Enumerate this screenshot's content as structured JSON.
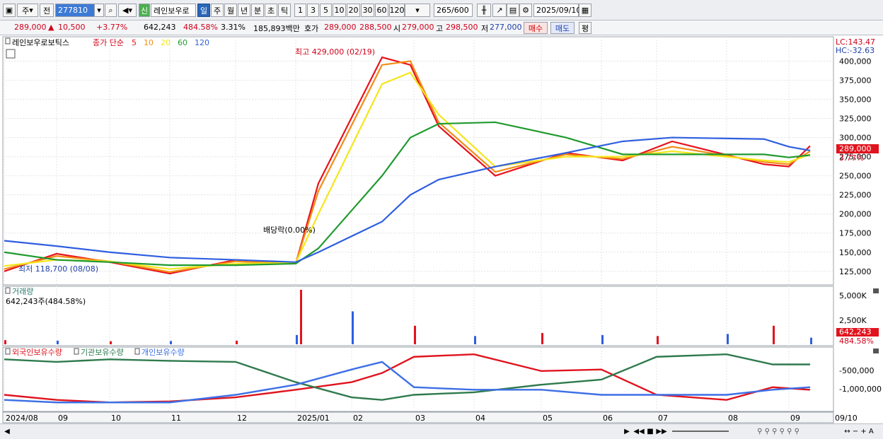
{
  "toolbar": {
    "period_label": "주",
    "all_label": "전",
    "code": "277810",
    "new_badge": "신",
    "stock_name": "레인보우로",
    "tabs": [
      "일",
      "주",
      "월",
      "년",
      "분",
      "초",
      "틱"
    ],
    "active_tab": 0,
    "intervals": [
      "1",
      "3",
      "5",
      "10",
      "20",
      "30",
      "60",
      "120"
    ],
    "count_value": "265",
    "count_max": "/600",
    "date": "2025/09/10"
  },
  "quote": {
    "price": "289,000",
    "change": "10,500",
    "change_pct": "+3.77%",
    "volume": "642,243",
    "volume_ratio": "484.58%",
    "turnover_pct": "3.31%",
    "amount": "185,893백만",
    "ask_label": "호가",
    "ask": "289,000",
    "bid": "288,500",
    "open_label": "시",
    "open": "279,000",
    "high_label": "고",
    "high": "298,500",
    "low_label": "저",
    "low": "277,000",
    "buy_button": "매수",
    "sell_button": "매도",
    "eval_button": "평"
  },
  "price_legend": {
    "name": "레인보우로보틱스",
    "ma_label": "종가 단순",
    "periods": [
      "5",
      "10",
      "20",
      "60",
      "120"
    ],
    "lc": "LC:143.47",
    "hc": "HC:-32.63"
  },
  "annotations": {
    "high": "최고 429,000 (02/19)",
    "low": "최저 118,700 (08/08)",
    "dividend": "배당락(0.00%)"
  },
  "price_axis": [
    "400,000",
    "375,000",
    "350,000",
    "325,000",
    "300,000",
    "275,000",
    "250,000",
    "225,000",
    "200,000",
    "175,000",
    "150,000",
    "125,000"
  ],
  "last_price_tag": "289,000",
  "last_pct_tag": "3.77%",
  "volume_panel": {
    "title": "거래량",
    "info": "642,243주(484.58%)",
    "axis": [
      "5,000K",
      "2,500K"
    ],
    "last_tag": "642,243",
    "last_pct_tag": "484.58%"
  },
  "flow_panel": {
    "legend": [
      "외국인보유수량",
      "기관보유수량",
      "개인보유수량"
    ],
    "axis": [
      "-500,000",
      "-1,000,000"
    ]
  },
  "x_axis": [
    "2024/08",
    "09",
    "10",
    "11",
    "12",
    "2025/01",
    "02",
    "03",
    "04",
    "05",
    "06",
    "07",
    "08",
    "09",
    "09/10"
  ],
  "colors": {
    "ma5": "#e8121b",
    "ma10": "#f28c16",
    "ma20": "#f5e61a",
    "ma60": "#1f9a2e",
    "ma120": "#2f5fe0",
    "foreign": "#e0141e",
    "institution": "#2f7a4e",
    "individual": "#3d6fe6"
  },
  "chart_data": [
    {
      "type": "line",
      "title": "레인보우로보틱스",
      "x": [
        "2024-08",
        "2024-09",
        "2024-10",
        "2024-11",
        "2024-12",
        "2025-01",
        "2025-01b",
        "2025-02",
        "2025-02b",
        "2025-03",
        "2025-04",
        "2025-05",
        "2025-06",
        "2025-07",
        "2025-08",
        "2025-09",
        "2025-09-10"
      ],
      "series": [
        {
          "name": "5",
          "values": [
            125000,
            148000,
            137000,
            122000,
            140000,
            135000,
            240000,
            405000,
            395000,
            315000,
            250000,
            280000,
            270000,
            295000,
            265000,
            262000,
            289000
          ]
        },
        {
          "name": "10",
          "values": [
            128000,
            145000,
            138000,
            124000,
            138000,
            135000,
            230000,
            395000,
            400000,
            320000,
            255000,
            278000,
            272000,
            288000,
            268000,
            265000,
            282000
          ]
        },
        {
          "name": "20",
          "values": [
            132000,
            140000,
            138000,
            128000,
            135000,
            136000,
            200000,
            370000,
            385000,
            330000,
            262000,
            275000,
            275000,
            282000,
            270000,
            268000,
            278000
          ]
        },
        {
          "name": "60",
          "values": [
            150000,
            140000,
            137000,
            133000,
            133000,
            135000,
            155000,
            250000,
            300000,
            318000,
            320000,
            300000,
            278000,
            278000,
            278000,
            274000,
            277000
          ]
        },
        {
          "name": "120",
          "values": [
            165000,
            158000,
            150000,
            143000,
            140000,
            137000,
            150000,
            190000,
            225000,
            245000,
            262000,
            280000,
            295000,
            300000,
            298000,
            288000,
            283000
          ]
        }
      ],
      "ylim": [
        110000,
        430000
      ]
    },
    {
      "type": "bar",
      "title": "거래량",
      "x": [
        "2024-08",
        "2024-09",
        "2024-10",
        "2024-11",
        "2024-12",
        "2025-01",
        "2025-01b",
        "2025-02",
        "2025-03",
        "2025-04",
        "2025-05",
        "2025-06",
        "2025-07",
        "2025-08",
        "2025-09",
        "2025-09-10"
      ],
      "values": [
        400,
        350,
        300,
        320,
        350,
        900,
        5300,
        3200,
        1800,
        800,
        1100,
        900,
        800,
        1000,
        1800,
        642
      ],
      "ylim": [
        0,
        5500
      ]
    },
    {
      "type": "line",
      "x": [
        "2024-08",
        "2024-09",
        "2024-10",
        "2024-11",
        "2024-12",
        "2025-01",
        "2025-02",
        "2025-02b",
        "2025-03",
        "2025-04",
        "2025-05",
        "2025-06",
        "2025-07",
        "2025-08",
        "2025-09",
        "2025-09-10"
      ],
      "series": [
        {
          "name": "외국인보유수량",
          "values": [
            -1150000,
            -1250000,
            -1300000,
            -1280000,
            -1200000,
            -1050000,
            -900000,
            -720000,
            -400000,
            -350000,
            -680000,
            -650000,
            -1150000,
            -1250000,
            -1000000,
            -1050000
          ]
        },
        {
          "name": "기관보유수량",
          "values": [
            -450000,
            -500000,
            -450000,
            -480000,
            -500000,
            -900000,
            -1200000,
            -1250000,
            -1150000,
            -1100000,
            -950000,
            -850000,
            -400000,
            -350000,
            -550000,
            -550000
          ]
        },
        {
          "name": "개인보유수량",
          "values": [
            -1250000,
            -1300000,
            -1300000,
            -1300000,
            -1150000,
            -950000,
            -650000,
            -500000,
            -1000000,
            -1050000,
            -1050000,
            -1150000,
            -1150000,
            -1150000,
            -1050000,
            -1000000
          ]
        }
      ],
      "ylim": [
        -1450000,
        -250000
      ]
    }
  ]
}
